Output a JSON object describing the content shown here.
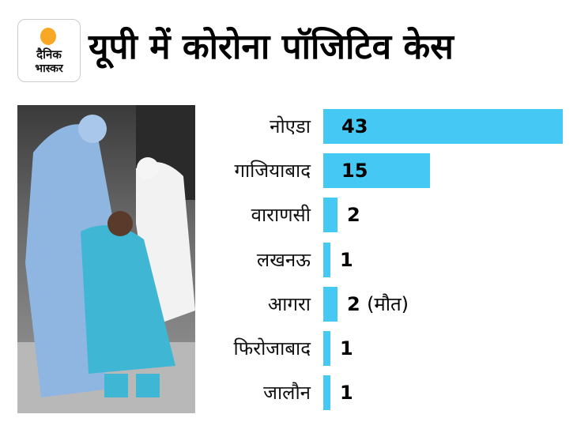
{
  "logo": {
    "line1": "दैनिक",
    "line2": "भास्कर"
  },
  "title": "यूपी में कोरोना पॉजिटिव केस",
  "chart_data": {
    "type": "bar",
    "orientation": "horizontal",
    "title": "यूपी में कोरोना पॉजिटिव केस",
    "categories": [
      "नोएडा",
      "गाजियाबाद",
      "वाराणसी",
      "लखनऊ",
      "आगरा",
      "फिरोजाबाद",
      "जालौन"
    ],
    "values": [
      43,
      15,
      2,
      1,
      2,
      1,
      1
    ],
    "value_labels": [
      "43",
      "15",
      "2",
      "1",
      "2",
      "1",
      "1"
    ],
    "annotations": [
      "",
      "",
      "",
      "",
      "(मौत)",
      "",
      ""
    ],
    "bar_color": "#46c8f5"
  }
}
